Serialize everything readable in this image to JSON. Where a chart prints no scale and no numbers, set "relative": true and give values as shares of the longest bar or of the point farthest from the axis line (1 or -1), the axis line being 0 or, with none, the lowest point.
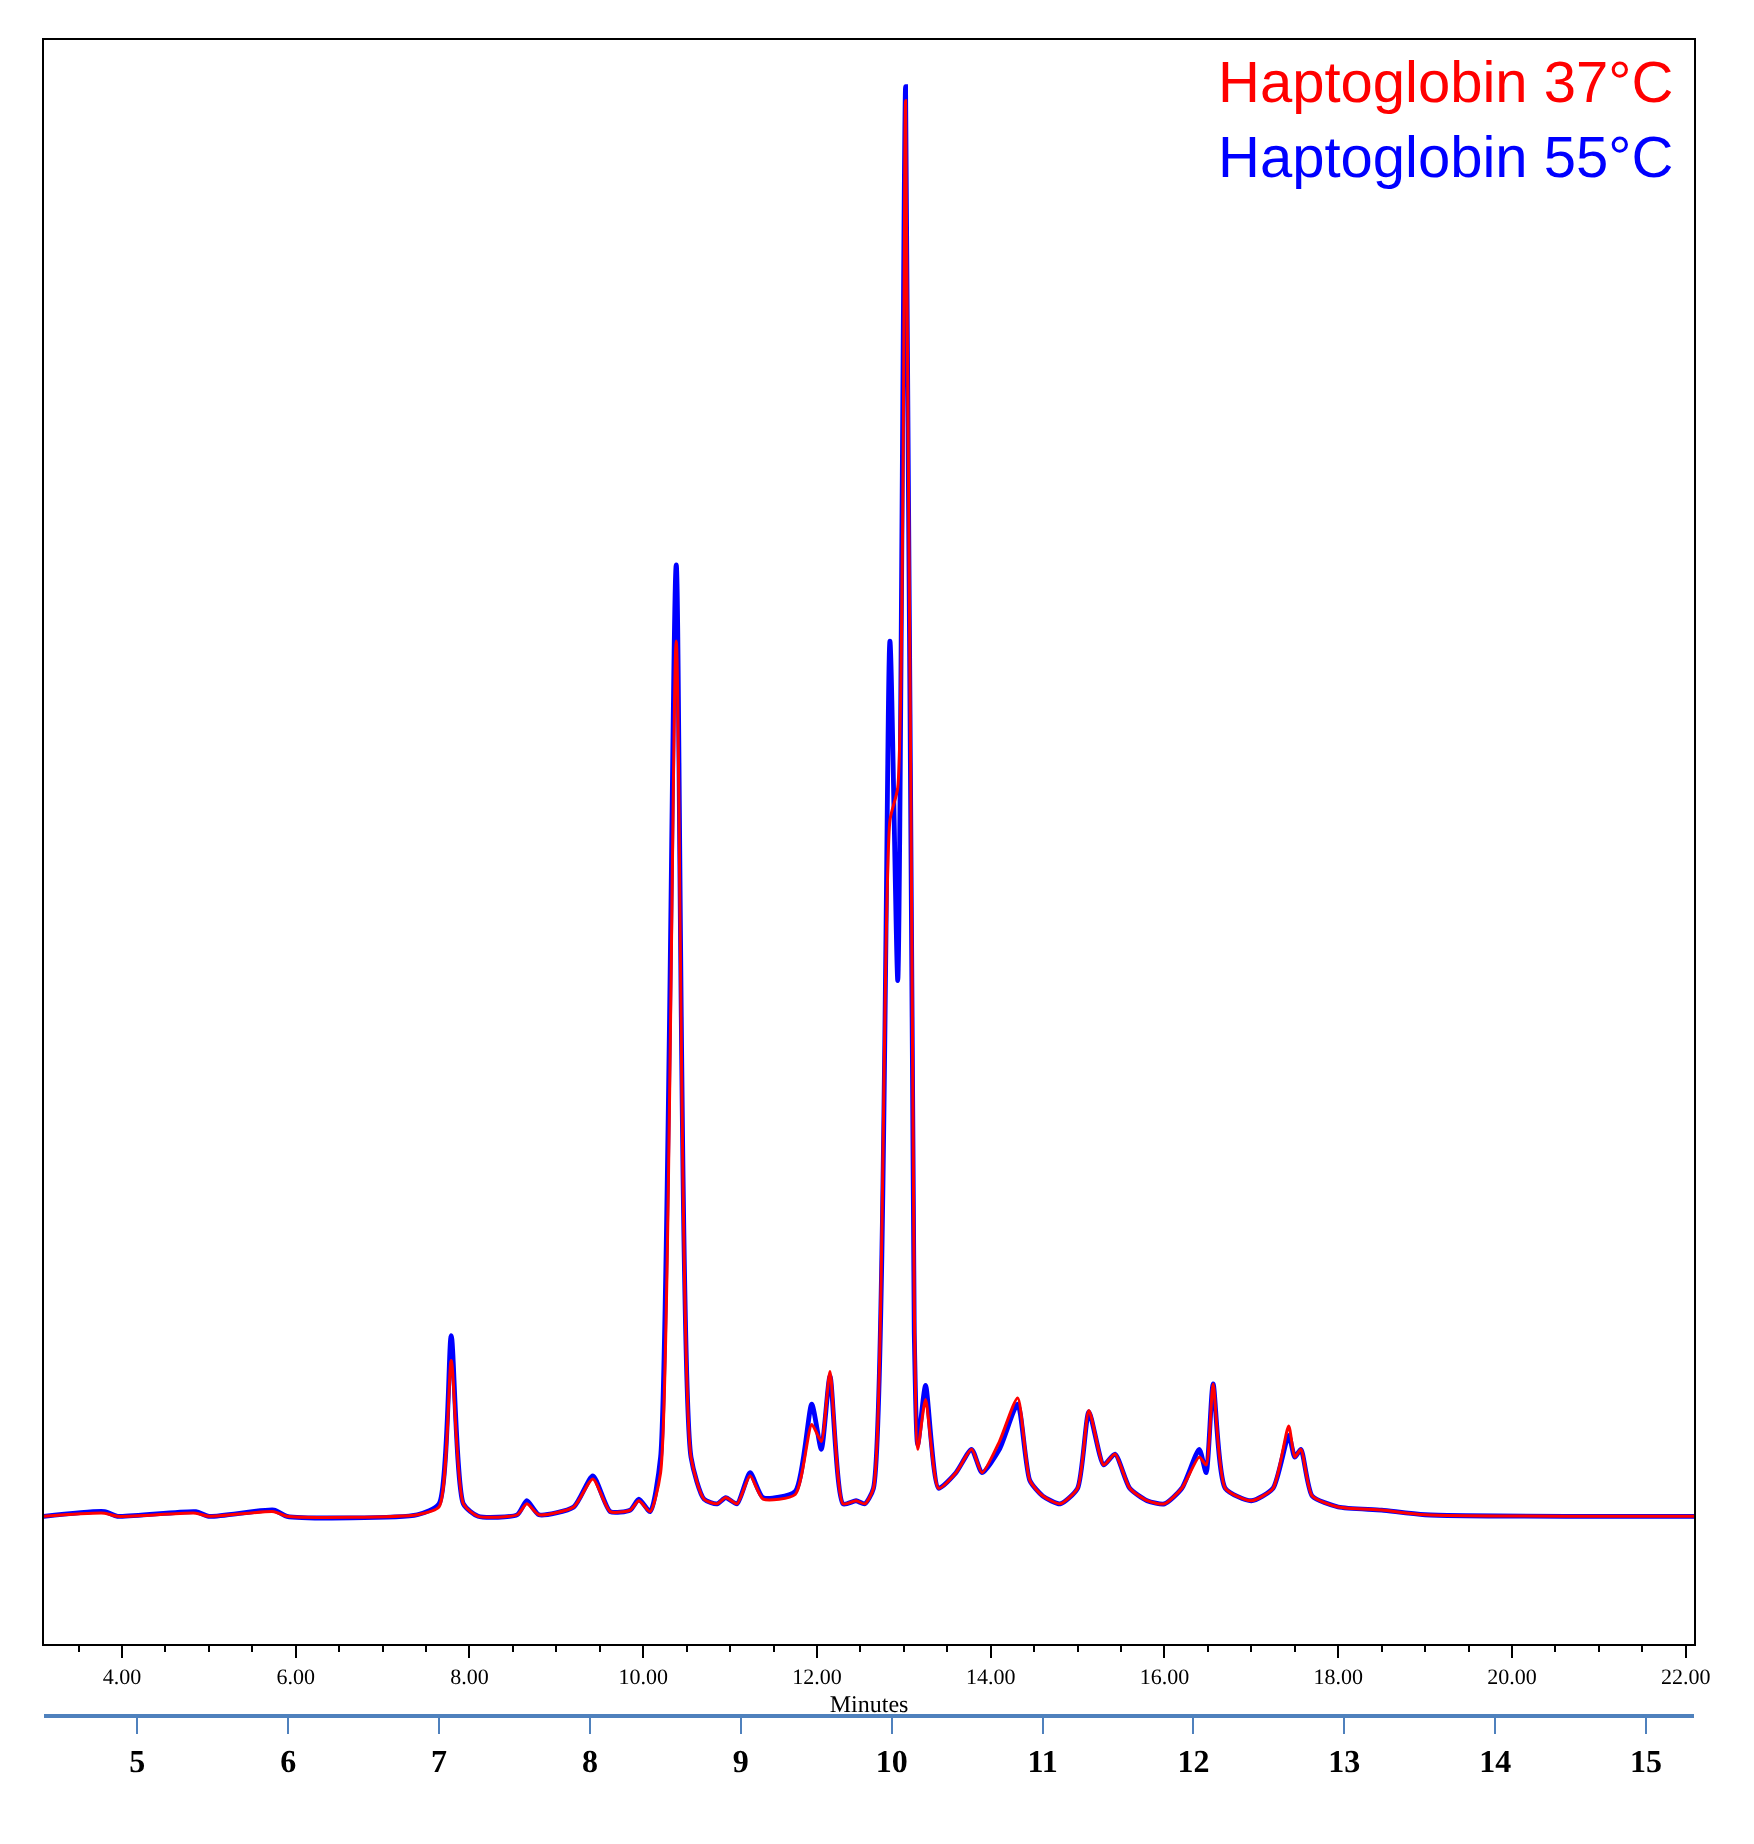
{
  "chart_data": {
    "type": "line",
    "relative": true,
    "xlabel": "Minutes",
    "xlim": [
      3.1,
      22.1
    ],
    "xticks": [
      {
        "value": 4,
        "label": "4.00"
      },
      {
        "value": 6,
        "label": "6.00"
      },
      {
        "value": 8,
        "label": "8.00"
      },
      {
        "value": 10,
        "label": "10.00"
      },
      {
        "value": 12,
        "label": "12.00"
      },
      {
        "value": 14,
        "label": "14.00"
      },
      {
        "value": 16,
        "label": "16.00"
      },
      {
        "value": 18,
        "label": "18.00"
      },
      {
        "value": 20,
        "label": "20.00"
      },
      {
        "value": 22,
        "label": "22.00"
      }
    ],
    "x2lim": [
      4.38,
      15.32
    ],
    "x2ticks": [
      5,
      6,
      7,
      8,
      9,
      10,
      11,
      12,
      13,
      14,
      15
    ],
    "x": [
      3.1,
      3.8,
      3.95,
      4.85,
      5.0,
      5.75,
      5.9,
      7.4,
      7.65,
      7.79,
      7.93,
      8.1,
      8.55,
      8.66,
      8.8,
      9.2,
      9.42,
      9.62,
      9.85,
      9.95,
      10.08,
      10.2,
      10.38,
      10.55,
      10.7,
      10.85,
      10.95,
      11.08,
      11.23,
      11.38,
      11.75,
      11.94,
      12.05,
      12.15,
      12.3,
      12.45,
      12.55,
      12.65,
      12.84,
      12.93,
      13.02,
      13.12,
      13.16,
      13.25,
      13.4,
      13.6,
      13.78,
      13.9,
      14.1,
      14.31,
      14.45,
      14.6,
      14.8,
      15.0,
      15.13,
      15.3,
      15.43,
      15.6,
      15.8,
      16.0,
      16.2,
      16.4,
      16.48,
      16.56,
      16.7,
      17.0,
      17.25,
      17.43,
      17.5,
      17.57,
      17.7,
      18.0,
      18.5,
      19.0,
      22.1
    ],
    "series": [
      {
        "name": "Haptoglobin 55°C",
        "color": "#0000ff",
        "values": [
          0.082,
          0.085,
          0.082,
          0.085,
          0.082,
          0.086,
          0.082,
          0.083,
          0.09,
          0.198,
          0.09,
          0.082,
          0.083,
          0.092,
          0.083,
          0.088,
          0.108,
          0.085,
          0.086,
          0.093,
          0.085,
          0.12,
          0.693,
          0.12,
          0.093,
          0.09,
          0.094,
          0.09,
          0.11,
          0.094,
          0.098,
          0.154,
          0.125,
          0.172,
          0.09,
          0.092,
          0.09,
          0.1,
          0.644,
          0.426,
          1.0,
          0.2,
          0.128,
          0.166,
          0.1,
          0.11,
          0.125,
          0.11,
          0.125,
          0.154,
          0.105,
          0.095,
          0.09,
          0.1,
          0.149,
          0.115,
          0.122,
          0.1,
          0.092,
          0.09,
          0.1,
          0.125,
          0.11,
          0.167,
          0.1,
          0.092,
          0.1,
          0.134,
          0.12,
          0.125,
          0.095,
          0.088,
          0.086,
          0.083,
          0.082
        ]
      },
      {
        "name": "Haptoglobin 37°C",
        "color": "#ff0000",
        "values": [
          0.082,
          0.084,
          0.082,
          0.084,
          0.082,
          0.085,
          0.082,
          0.083,
          0.088,
          0.182,
          0.09,
          0.082,
          0.083,
          0.09,
          0.083,
          0.088,
          0.106,
          0.085,
          0.086,
          0.092,
          0.085,
          0.11,
          0.644,
          0.12,
          0.093,
          0.09,
          0.094,
          0.09,
          0.108,
          0.093,
          0.096,
          0.141,
          0.13,
          0.175,
          0.09,
          0.092,
          0.09,
          0.1,
          0.529,
          0.55,
          0.991,
          0.22,
          0.125,
          0.157,
          0.1,
          0.11,
          0.125,
          0.11,
          0.13,
          0.158,
          0.105,
          0.095,
          0.09,
          0.1,
          0.15,
          0.115,
          0.122,
          0.1,
          0.092,
          0.09,
          0.1,
          0.12,
          0.115,
          0.167,
          0.1,
          0.092,
          0.1,
          0.14,
          0.12,
          0.125,
          0.095,
          0.088,
          0.086,
          0.083,
          0.082
        ]
      }
    ],
    "legend": "top right",
    "marker": "none",
    "line_style": "solid"
  }
}
